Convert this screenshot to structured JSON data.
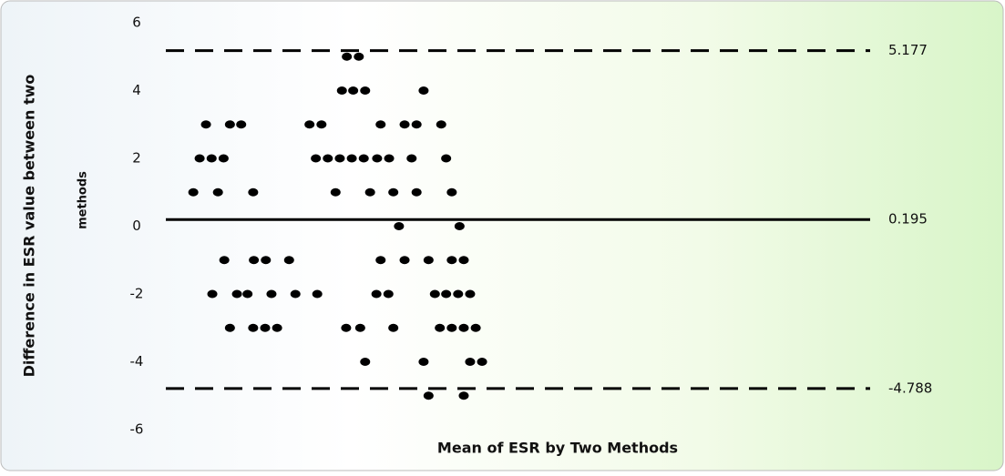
{
  "chart_data": {
    "type": "scatter",
    "xlabel": "Mean of ESR by Two Methods",
    "ylabel": [
      "Difference in ESR value between two",
      "methods"
    ],
    "ylim": [
      -6,
      6
    ],
    "yticks": [
      -6,
      -4,
      -2,
      0,
      2,
      4,
      6
    ],
    "xlim": [
      0,
      100
    ],
    "color": "#000000",
    "x": [
      25.7,
      27.4,
      25.0,
      26.6,
      28.3,
      36.6,
      5.7,
      9.1,
      10.7,
      20.4,
      22.1,
      30.5,
      33.9,
      35.6,
      39.1,
      4.8,
      6.5,
      8.2,
      21.3,
      23.0,
      24.7,
      26.4,
      28.1,
      30.0,
      31.7,
      34.9,
      39.8,
      3.9,
      7.4,
      12.4,
      24.1,
      29.0,
      32.3,
      35.6,
      40.6,
      33.1,
      41.7,
      8.3,
      12.5,
      14.2,
      17.5,
      30.5,
      33.9,
      37.3,
      40.6,
      42.3,
      6.6,
      10.1,
      11.6,
      15.0,
      18.4,
      21.5,
      29.9,
      31.6,
      38.2,
      39.8,
      41.5,
      43.2,
      9.1,
      12.4,
      14.1,
      15.8,
      25.6,
      27.6,
      32.3,
      38.9,
      40.6,
      42.3,
      44.0,
      28.3,
      36.6,
      43.2,
      44.9,
      37.3,
      42.3
    ],
    "values": [
      5,
      5,
      4,
      4,
      4,
      4,
      3,
      3,
      3,
      3,
      3,
      3,
      3,
      3,
      3,
      2,
      2,
      2,
      2,
      2,
      2,
      2,
      2,
      2,
      2,
      2,
      2,
      1,
      1,
      1,
      1,
      1,
      1,
      1,
      1,
      0,
      0,
      -1,
      -1,
      -1,
      -1,
      -1,
      -1,
      -1,
      -1,
      -1,
      -2,
      -2,
      -2,
      -2,
      -2,
      -2,
      -2,
      -2,
      -2,
      -2,
      -2,
      -2,
      -3,
      -3,
      -3,
      -3,
      -3,
      -3,
      -3,
      -3,
      -3,
      -3,
      -3,
      -4,
      -4,
      -4,
      -4,
      -5,
      -5
    ],
    "reference_lines": [
      {
        "value": 5.177,
        "dashed": true
      },
      {
        "value": 0.195,
        "dashed": false
      },
      {
        "value": -4.788,
        "dashed": true
      }
    ]
  }
}
